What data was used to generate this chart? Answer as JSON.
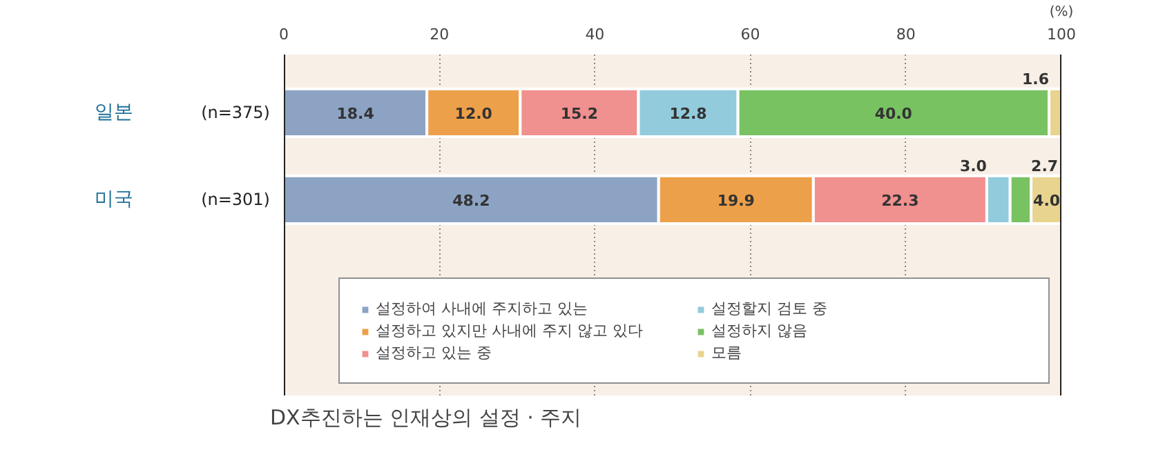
{
  "chart_data": {
    "type": "bar",
    "orientation": "horizontal",
    "stacked": true,
    "title": "DX추진하는 인재상의 설정 · 주지",
    "xlabel": "(%)",
    "categories": [
      "일본",
      "미국"
    ],
    "annotations": [
      "(n=375)",
      "(n=301)"
    ],
    "series": [
      {
        "name": "설정하여 사내에 주지하고 있는",
        "color": "#8ca3c4",
        "values": [
          18.4,
          48.2
        ],
        "value_labels": [
          "18.4",
          "48.2"
        ]
      },
      {
        "name": "설정하고 있지만 사내에 주지 않고 있다",
        "color": "#eda04a",
        "values": [
          12.0,
          19.9
        ],
        "value_labels": [
          "12.0",
          "19.9"
        ]
      },
      {
        "name": "설정하고 있는 중",
        "color": "#f0908f",
        "values": [
          15.2,
          22.3
        ],
        "value_labels": [
          "15.2",
          "22.3"
        ]
      },
      {
        "name": "설정할지 검토 중",
        "color": "#92cbdc",
        "values": [
          12.8,
          3.0
        ],
        "value_labels": [
          "12.8",
          "3.0"
        ]
      },
      {
        "name": "설정하지 않음",
        "color": "#78c262",
        "values": [
          40.0,
          2.7
        ],
        "value_labels": [
          "40.0",
          "2.7"
        ]
      },
      {
        "name": "모름",
        "color": "#e8d48e",
        "values": [
          1.6,
          4.0
        ],
        "value_labels": [
          "1.6",
          "4.0"
        ]
      }
    ],
    "xlim": [
      0,
      100
    ],
    "xticks": [
      0,
      20,
      40,
      60,
      80,
      100
    ],
    "grid": "x",
    "data_labels": true,
    "legend": "bottom"
  }
}
